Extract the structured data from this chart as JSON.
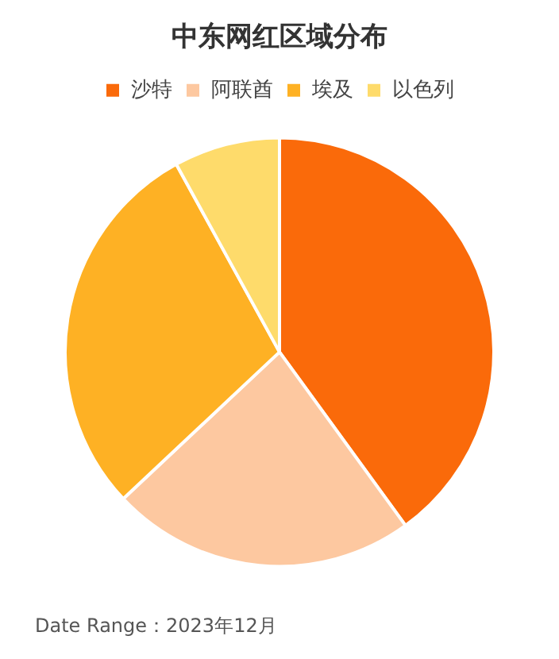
{
  "chart_data": {
    "type": "pie",
    "title": "中东网红区域分布",
    "categories": [
      "沙特",
      "阿联酋",
      "埃及",
      "以色列"
    ],
    "values": [
      40,
      23,
      29,
      8
    ],
    "colors": [
      "#fa6a0a",
      "#fdc8a0",
      "#feb124",
      "#fedb6b"
    ],
    "legend": "top",
    "annotations": [
      "Date Range：2023年12月"
    ]
  }
}
